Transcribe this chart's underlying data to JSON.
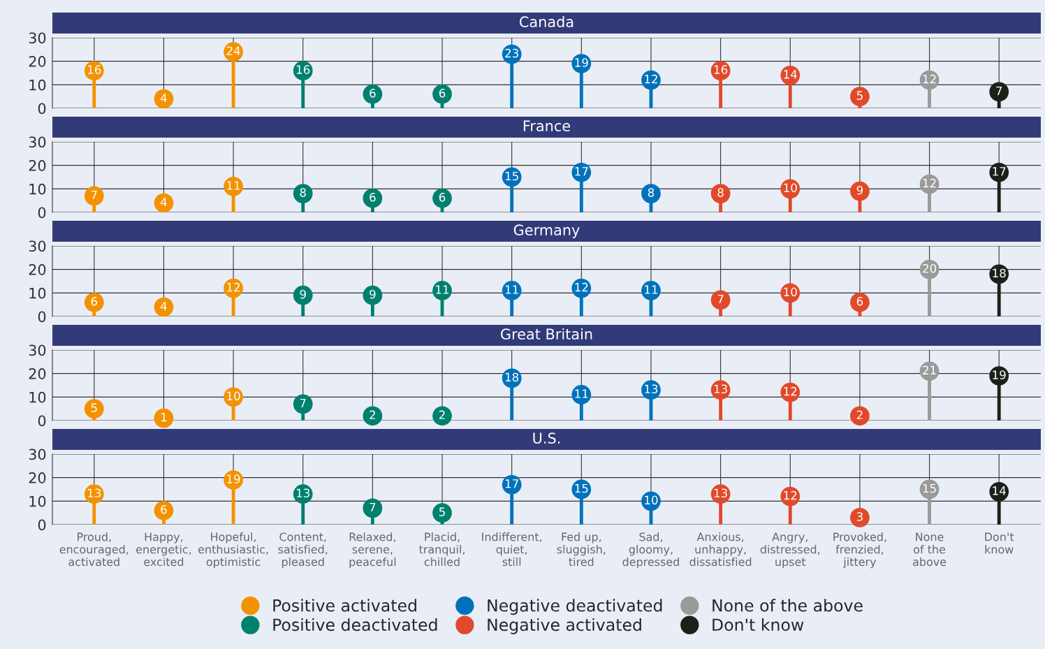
{
  "chart_data": [
    {
      "type": "lollipop",
      "title": "Canada",
      "categories": [
        null,
        null,
        null,
        null,
        null,
        null,
        null,
        null,
        null,
        null,
        null,
        null,
        null,
        null
      ],
      "ylim": [
        0,
        30
      ],
      "yticks": [
        0,
        10,
        20,
        30
      ],
      "grid": true,
      "data_labels": true,
      "tick_labels": "y",
      "legend": "bottom",
      "series": [
        {
          "name": "Positive activated",
          "color": "#f39200",
          "values": [
            16,
            4,
            24,
            null,
            null,
            null,
            null,
            null,
            null,
            null,
            null,
            null,
            null,
            null
          ]
        },
        {
          "name": "Positive deactivated",
          "color": "#00806f",
          "values": [
            null,
            null,
            null,
            16,
            6,
            6,
            null,
            null,
            null,
            null,
            null,
            null,
            null,
            null
          ]
        },
        {
          "name": "Negative deactivated",
          "color": "#0072bc",
          "values": [
            null,
            null,
            null,
            null,
            null,
            null,
            23,
            19,
            12,
            null,
            null,
            null,
            null,
            null
          ]
        },
        {
          "name": "Negative activated",
          "color": "#e04a2b",
          "values": [
            null,
            null,
            null,
            null,
            null,
            null,
            null,
            null,
            null,
            16,
            14,
            5,
            null,
            null
          ]
        },
        {
          "name": "None of the above",
          "color": "#9a9a9a",
          "values": [
            null,
            null,
            null,
            null,
            null,
            null,
            null,
            null,
            null,
            null,
            null,
            null,
            12,
            null
          ]
        },
        {
          "name": "Don't know",
          "color": "#1b2119",
          "values": [
            null,
            null,
            null,
            null,
            null,
            null,
            null,
            null,
            null,
            null,
            null,
            null,
            null,
            7
          ]
        }
      ]
    },
    {
      "type": "lollipop",
      "title": "France",
      "categories": [
        null,
        null,
        null,
        null,
        null,
        null,
        null,
        null,
        null,
        null,
        null,
        null,
        null,
        null
      ],
      "ylim": [
        0,
        30
      ],
      "yticks": [
        0,
        10,
        20,
        30
      ],
      "grid": true,
      "data_labels": true,
      "tick_labels": "y",
      "series": [
        {
          "color": "#f39200",
          "values": [
            7,
            4,
            11,
            null,
            null,
            null,
            null,
            null,
            null,
            null,
            null,
            null,
            null,
            null
          ]
        },
        {
          "color": "#00806f",
          "values": [
            null,
            null,
            null,
            8,
            6,
            6,
            null,
            null,
            null,
            null,
            null,
            null,
            null,
            null
          ]
        },
        {
          "color": "#0072bc",
          "values": [
            null,
            null,
            null,
            null,
            null,
            null,
            15,
            17,
            8,
            null,
            null,
            null,
            null,
            null
          ]
        },
        {
          "color": "#e04a2b",
          "values": [
            null,
            null,
            null,
            null,
            null,
            null,
            null,
            null,
            null,
            8,
            10,
            9,
            null,
            null
          ]
        },
        {
          "color": "#9a9a9a",
          "values": [
            null,
            null,
            null,
            null,
            null,
            null,
            null,
            null,
            null,
            null,
            null,
            null,
            12,
            null
          ]
        },
        {
          "color": "#1b2119",
          "values": [
            null,
            null,
            null,
            null,
            null,
            null,
            null,
            null,
            null,
            null,
            null,
            null,
            null,
            17
          ]
        }
      ]
    },
    {
      "type": "lollipop",
      "title": "Germany",
      "categories": [
        null,
        null,
        null,
        null,
        null,
        null,
        null,
        null,
        null,
        null,
        null,
        null,
        null,
        null
      ],
      "ylim": [
        0,
        30
      ],
      "yticks": [
        0,
        10,
        20,
        30
      ],
      "grid": true,
      "data_labels": true,
      "tick_labels": "y",
      "series": [
        {
          "color": "#f39200",
          "values": [
            6,
            4,
            12,
            null,
            null,
            null,
            null,
            null,
            null,
            null,
            null,
            null,
            null,
            null
          ]
        },
        {
          "color": "#00806f",
          "values": [
            null,
            null,
            null,
            9,
            9,
            11,
            null,
            null,
            null,
            null,
            null,
            null,
            null,
            null
          ]
        },
        {
          "color": "#0072bc",
          "values": [
            null,
            null,
            null,
            null,
            null,
            null,
            11,
            12,
            11,
            null,
            null,
            null,
            null,
            null
          ]
        },
        {
          "color": "#e04a2b",
          "values": [
            null,
            null,
            null,
            null,
            null,
            null,
            null,
            null,
            null,
            7,
            10,
            6,
            null,
            null
          ]
        },
        {
          "color": "#9a9a9a",
          "values": [
            null,
            null,
            null,
            null,
            null,
            null,
            null,
            null,
            null,
            null,
            null,
            null,
            20,
            null
          ]
        },
        {
          "color": "#1b2119",
          "values": [
            null,
            null,
            null,
            null,
            null,
            null,
            null,
            null,
            null,
            null,
            null,
            null,
            null,
            18
          ]
        }
      ]
    },
    {
      "type": "lollipop",
      "title": "Great Britain",
      "categories": [
        null,
        null,
        null,
        null,
        null,
        null,
        null,
        null,
        null,
        null,
        null,
        null,
        null,
        null
      ],
      "ylim": [
        0,
        30
      ],
      "yticks": [
        0,
        10,
        20,
        30
      ],
      "grid": true,
      "data_labels": true,
      "tick_labels": "y",
      "series": [
        {
          "color": "#f39200",
          "values": [
            5,
            1,
            10,
            null,
            null,
            null,
            null,
            null,
            null,
            null,
            null,
            null,
            null,
            null
          ]
        },
        {
          "color": "#00806f",
          "values": [
            null,
            null,
            null,
            7,
            2,
            2,
            null,
            null,
            null,
            null,
            null,
            null,
            null,
            null
          ]
        },
        {
          "color": "#0072bc",
          "values": [
            null,
            null,
            null,
            null,
            null,
            null,
            18,
            11,
            13,
            null,
            null,
            null,
            null,
            null
          ]
        },
        {
          "color": "#e04a2b",
          "values": [
            null,
            null,
            null,
            null,
            null,
            null,
            null,
            null,
            null,
            13,
            12,
            2,
            null,
            null
          ]
        },
        {
          "color": "#9a9a9a",
          "values": [
            null,
            null,
            null,
            null,
            null,
            null,
            null,
            null,
            null,
            null,
            null,
            null,
            21,
            null
          ]
        },
        {
          "color": "#1b2119",
          "values": [
            null,
            null,
            null,
            null,
            null,
            null,
            null,
            null,
            null,
            null,
            null,
            null,
            null,
            19
          ]
        }
      ]
    },
    {
      "type": "lollipop",
      "title": "U.S.",
      "categories": [
        "Proud,\nencouraged,\nactivated",
        "Happy,\nenergetic,\nexcited",
        "Hopeful,\nenthusiastic,\noptimistic",
        "Content,\nsatisfied,\npleased",
        "Relaxed,\nserene,\npeaceful",
        "Placid,\ntranquil,\nchilled",
        "Indifferent,\nquiet,\nstill",
        "Fed up,\nsluggish,\ntired",
        "Sad,\ngloomy,\ndepressed",
        "Anxious,\nunhappy,\ndissatisfied",
        "Angry,\ndistressed,\nupset",
        "Provoked,\nfrenzied,\njittery",
        "None\nof the\nabove",
        "Don't\nknow"
      ],
      "ylim": [
        0,
        30
      ],
      "yticks": [
        0,
        10,
        20,
        30
      ],
      "grid": true,
      "data_labels": true,
      "series": [
        {
          "color": "#f39200",
          "values": [
            13,
            6,
            19,
            null,
            null,
            null,
            null,
            null,
            null,
            null,
            null,
            null,
            null,
            null
          ]
        },
        {
          "color": "#00806f",
          "values": [
            null,
            null,
            null,
            13,
            7,
            5,
            null,
            null,
            null,
            null,
            null,
            null,
            null,
            null
          ]
        },
        {
          "color": "#0072bc",
          "values": [
            null,
            null,
            null,
            null,
            null,
            null,
            17,
            15,
            10,
            null,
            null,
            null,
            null,
            null
          ]
        },
        {
          "color": "#e04a2b",
          "values": [
            null,
            null,
            null,
            null,
            null,
            null,
            null,
            null,
            null,
            13,
            12,
            3,
            null,
            null
          ]
        },
        {
          "color": "#9a9a9a",
          "values": [
            null,
            null,
            null,
            null,
            null,
            null,
            null,
            null,
            null,
            null,
            null,
            null,
            15,
            null
          ]
        },
        {
          "color": "#1b2119",
          "values": [
            null,
            null,
            null,
            null,
            null,
            null,
            null,
            null,
            null,
            null,
            null,
            null,
            null,
            14
          ]
        }
      ]
    }
  ]
}
